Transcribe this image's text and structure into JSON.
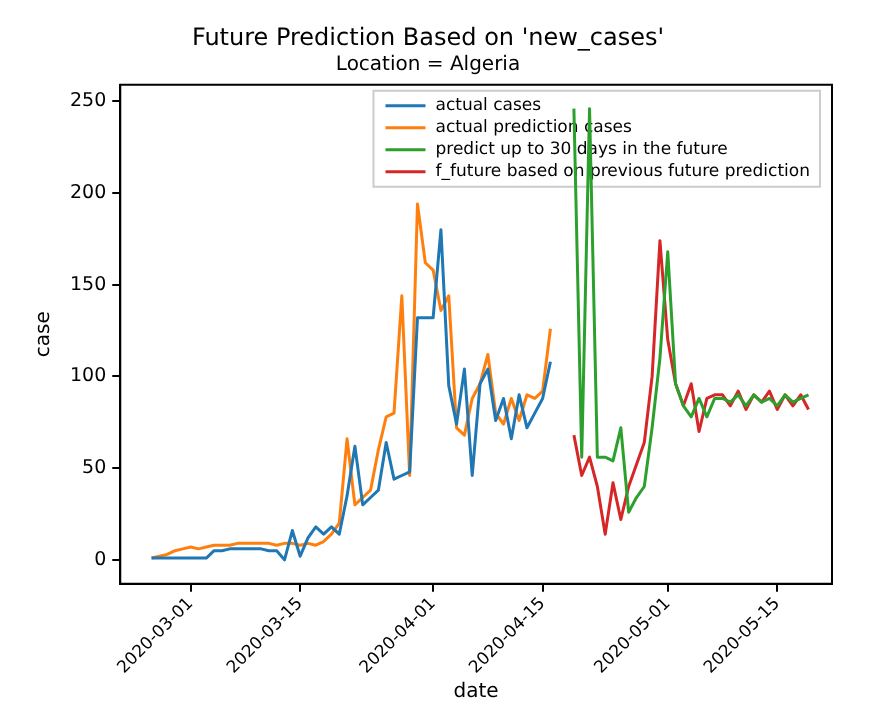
{
  "chart_data": {
    "type": "line",
    "title": "Future Prediction Based on 'new_cases'",
    "subtitle": "Location = Algeria",
    "xlabel": "date",
    "ylabel": "case",
    "xlim": [
      "2020-02-21",
      "2020-05-22"
    ],
    "xticks": [
      "2020-03-01",
      "2020-03-15",
      "2020-04-01",
      "2020-04-15",
      "2020-05-01",
      "2020-05-15"
    ],
    "ylim": [
      -13,
      259
    ],
    "yticks": [
      0,
      50,
      100,
      150,
      200,
      250
    ],
    "legend": "top right",
    "grid": false,
    "marker": "none",
    "line_style": "solid",
    "series": [
      {
        "name": "actual cases",
        "color": "#1f77b4",
        "x": [
          "2020-02-25",
          "2020-02-26",
          "2020-02-27",
          "2020-02-28",
          "2020-02-29",
          "2020-03-01",
          "2020-03-02",
          "2020-03-03",
          "2020-03-04",
          "2020-03-05",
          "2020-03-06",
          "2020-03-07",
          "2020-03-08",
          "2020-03-09",
          "2020-03-10",
          "2020-03-11",
          "2020-03-12",
          "2020-03-13",
          "2020-03-14",
          "2020-03-15",
          "2020-03-16",
          "2020-03-17",
          "2020-03-18",
          "2020-03-19",
          "2020-03-20",
          "2020-03-21",
          "2020-03-22",
          "2020-03-23",
          "2020-03-24",
          "2020-03-25",
          "2020-03-26",
          "2020-03-27",
          "2020-03-28",
          "2020-03-29",
          "2020-03-30",
          "2020-03-31",
          "2020-04-01",
          "2020-04-02",
          "2020-04-03",
          "2020-04-04",
          "2020-04-05",
          "2020-04-06",
          "2020-04-07",
          "2020-04-08",
          "2020-04-09",
          "2020-04-10",
          "2020-04-11",
          "2020-04-12",
          "2020-04-13",
          "2020-04-14",
          "2020-04-15",
          "2020-04-16"
        ],
        "values": [
          1,
          1,
          1,
          1,
          1,
          1,
          1,
          1,
          5,
          5,
          6,
          6,
          6,
          6,
          6,
          5,
          5,
          0,
          16,
          2,
          12,
          18,
          14,
          18,
          14,
          35,
          62,
          30,
          34,
          38,
          64,
          44,
          46,
          48,
          132,
          132,
          132,
          180,
          95,
          74,
          104,
          46,
          96,
          104,
          76,
          88,
          66,
          90,
          72,
          80,
          88,
          108
        ]
      },
      {
        "name": "actual prediction cases",
        "color": "#ff7f0e",
        "x": [
          "2020-02-25",
          "2020-02-26",
          "2020-02-27",
          "2020-02-28",
          "2020-02-29",
          "2020-03-01",
          "2020-03-02",
          "2020-03-03",
          "2020-03-04",
          "2020-03-05",
          "2020-03-06",
          "2020-03-07",
          "2020-03-08",
          "2020-03-09",
          "2020-03-10",
          "2020-03-11",
          "2020-03-12",
          "2020-03-13",
          "2020-03-14",
          "2020-03-15",
          "2020-03-16",
          "2020-03-17",
          "2020-03-18",
          "2020-03-19",
          "2020-03-20",
          "2020-03-21",
          "2020-03-22",
          "2020-03-23",
          "2020-03-24",
          "2020-03-25",
          "2020-03-26",
          "2020-03-27",
          "2020-03-28",
          "2020-03-29",
          "2020-03-30",
          "2020-03-31",
          "2020-04-01",
          "2020-04-02",
          "2020-04-03",
          "2020-04-04",
          "2020-04-05",
          "2020-04-06",
          "2020-04-07",
          "2020-04-08",
          "2020-04-09",
          "2020-04-10",
          "2020-04-11",
          "2020-04-12",
          "2020-04-13",
          "2020-04-14",
          "2020-04-15",
          "2020-04-16"
        ],
        "values": [
          1,
          2,
          3,
          5,
          6,
          7,
          6,
          7,
          8,
          8,
          8,
          9,
          9,
          9,
          9,
          9,
          8,
          9,
          9,
          8,
          9,
          8,
          10,
          14,
          20,
          66,
          30,
          34,
          38,
          60,
          78,
          80,
          144,
          46,
          194,
          162,
          158,
          136,
          144,
          72,
          68,
          88,
          96,
          112,
          80,
          74,
          88,
          76,
          90,
          88,
          92,
          126
        ]
      },
      {
        "name": "predict up to 30 days in the future",
        "color": "#2ca02c",
        "x": [
          "2020-04-19",
          "2020-04-20",
          "2020-04-21",
          "2020-04-22",
          "2020-04-23",
          "2020-04-24",
          "2020-04-25",
          "2020-04-26",
          "2020-04-27",
          "2020-04-28",
          "2020-04-29",
          "2020-04-30",
          "2020-05-01",
          "2020-05-02",
          "2020-05-03",
          "2020-05-04",
          "2020-05-05",
          "2020-05-06",
          "2020-05-07",
          "2020-05-08",
          "2020-05-09",
          "2020-05-10",
          "2020-05-11",
          "2020-05-12",
          "2020-05-13",
          "2020-05-14",
          "2020-05-15",
          "2020-05-16",
          "2020-05-17",
          "2020-05-18",
          "2020-05-19"
        ],
        "values": [
          246,
          56,
          246,
          56,
          56,
          54,
          72,
          26,
          34,
          40,
          72,
          110,
          168,
          96,
          84,
          78,
          88,
          78,
          88,
          88,
          86,
          90,
          84,
          90,
          86,
          88,
          84,
          90,
          86,
          88,
          90
        ]
      },
      {
        "name": "f_future based on previous future prediction",
        "color": "#d62728",
        "x": [
          "2020-04-19",
          "2020-04-20",
          "2020-04-21",
          "2020-04-22",
          "2020-04-23",
          "2020-04-24",
          "2020-04-25",
          "2020-04-26",
          "2020-04-27",
          "2020-04-28",
          "2020-04-29",
          "2020-04-30",
          "2020-05-01",
          "2020-05-02",
          "2020-05-03",
          "2020-05-04",
          "2020-05-05",
          "2020-05-06",
          "2020-05-07",
          "2020-05-08",
          "2020-05-09",
          "2020-05-10",
          "2020-05-11",
          "2020-05-12",
          "2020-05-13",
          "2020-05-14",
          "2020-05-15",
          "2020-05-16",
          "2020-05-17",
          "2020-05-18",
          "2020-05-19"
        ],
        "values": [
          68,
          46,
          56,
          40,
          14,
          42,
          22,
          40,
          52,
          64,
          100,
          174,
          120,
          96,
          84,
          96,
          70,
          88,
          90,
          90,
          84,
          92,
          82,
          90,
          86,
          92,
          82,
          90,
          84,
          90,
          82
        ]
      }
    ]
  }
}
